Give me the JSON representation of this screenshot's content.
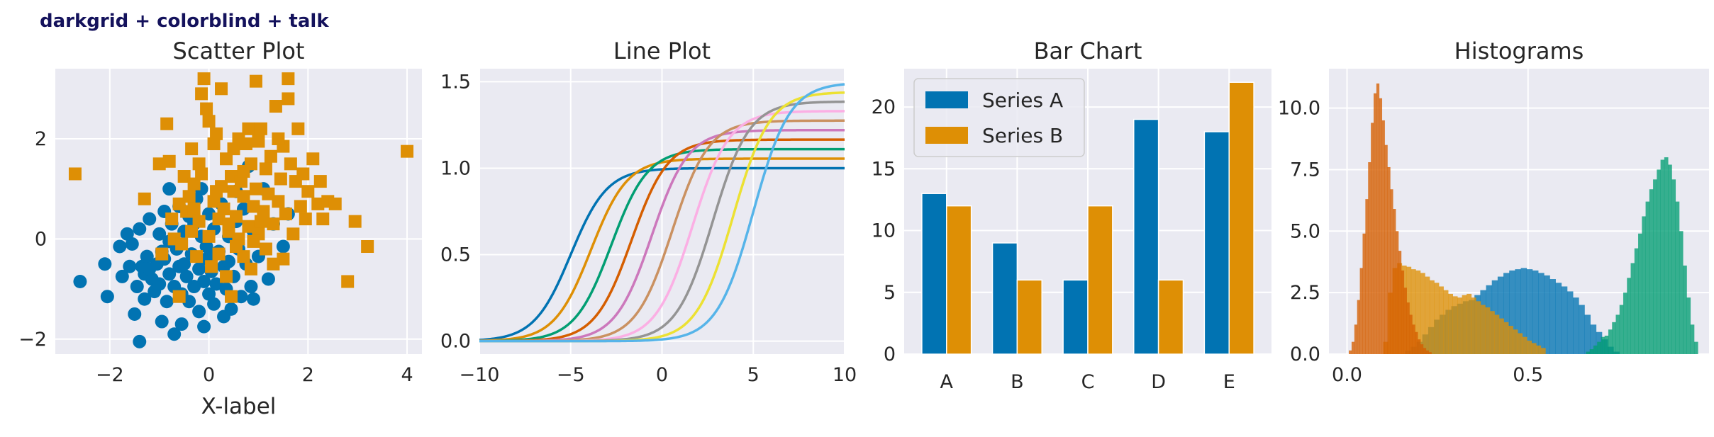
{
  "suptitle": "darkgrid + colorblind + talk",
  "palette": [
    "#0173b2",
    "#de8f05",
    "#029e73",
    "#d55e00",
    "#cc78bc",
    "#ca9161",
    "#fbafe4",
    "#949494",
    "#ece133",
    "#56b4e9"
  ],
  "chart_data": [
    {
      "type": "scatter",
      "title": "Scatter Plot",
      "xlabel": "X-label",
      "ylabel": "",
      "xlim": [
        -3.1,
        4.3
      ],
      "ylim": [
        -2.3,
        3.4
      ],
      "xticks": [
        -2,
        0,
        2,
        4
      ],
      "yticks": [
        -2,
        0,
        2
      ],
      "xtick_labels": [
        "−2",
        "0",
        "2",
        "4"
      ],
      "ytick_labels": [
        "−2",
        "0",
        "2"
      ],
      "series": [
        {
          "marker": "circle",
          "color": "#0173b2",
          "points": [
            [
              -2.6,
              -0.85
            ],
            [
              -2.05,
              -1.15
            ],
            [
              -2.1,
              -0.5
            ],
            [
              -1.8,
              -0.15
            ],
            [
              -1.75,
              -0.75
            ],
            [
              -1.6,
              -0.55
            ],
            [
              -1.55,
              -0.1
            ],
            [
              -1.5,
              -1.5
            ],
            [
              -1.45,
              -0.95
            ],
            [
              -1.4,
              -2.05
            ],
            [
              -1.4,
              0.2
            ],
            [
              -1.35,
              -0.55
            ],
            [
              -1.3,
              -0.7
            ],
            [
              -1.3,
              -1.2
            ],
            [
              -1.25,
              -0.35
            ],
            [
              -1.2,
              0.4
            ],
            [
              -1.15,
              -0.8
            ],
            [
              -1.1,
              -1.05
            ],
            [
              -1.05,
              -0.5
            ],
            [
              -1.0,
              0.1
            ],
            [
              -1.0,
              -0.9
            ],
            [
              -0.95,
              -1.65
            ],
            [
              -0.9,
              -0.4
            ],
            [
              -0.9,
              0.55
            ],
            [
              -0.85,
              -1.25
            ],
            [
              -0.8,
              1.0
            ],
            [
              -0.8,
              -0.7
            ],
            [
              -0.75,
              0.3
            ],
            [
              -0.7,
              -0.95
            ],
            [
              -0.7,
              -1.9
            ],
            [
              -0.65,
              -0.2
            ],
            [
              -0.6,
              0.65
            ],
            [
              -0.6,
              -0.55
            ],
            [
              -0.55,
              -1.1
            ],
            [
              -0.5,
              0.15
            ],
            [
              -0.45,
              -0.75
            ],
            [
              -0.4,
              -1.25
            ],
            [
              -0.4,
              0.45
            ],
            [
              -0.35,
              -0.3
            ],
            [
              -0.3,
              -0.95
            ],
            [
              -0.25,
              0.8
            ],
            [
              -0.2,
              -0.6
            ],
            [
              -0.2,
              -1.45
            ],
            [
              -0.15,
              0.05
            ],
            [
              -0.1,
              -0.85
            ],
            [
              -0.1,
              -1.75
            ],
            [
              -0.05,
              -0.4
            ],
            [
              0.0,
              0.5
            ],
            [
              0.0,
              -1.1
            ],
            [
              0.05,
              -0.65
            ],
            [
              0.1,
              0.2
            ],
            [
              0.1,
              -1.3
            ],
            [
              0.15,
              -0.9
            ],
            [
              0.2,
              -0.25
            ],
            [
              0.25,
              0.7
            ],
            [
              0.3,
              -0.55
            ],
            [
              0.35,
              -1.0
            ],
            [
              0.4,
              0.05
            ],
            [
              0.45,
              -1.4
            ],
            [
              0.5,
              -0.75
            ],
            [
              0.55,
              0.35
            ],
            [
              0.6,
              -0.2
            ],
            [
              0.65,
              -1.15
            ],
            [
              0.7,
              0.6
            ],
            [
              0.75,
              -0.5
            ],
            [
              0.8,
              1.45
            ],
            [
              0.85,
              -0.95
            ],
            [
              0.9,
              0.15
            ],
            [
              1.0,
              -0.35
            ],
            [
              1.1,
              1.0
            ],
            [
              1.2,
              -0.8
            ],
            [
              1.3,
              0.3
            ],
            [
              1.5,
              -0.15
            ],
            [
              1.6,
              0.5
            ],
            [
              -1.2,
              -0.6
            ],
            [
              -0.5,
              -0.5
            ],
            [
              0.1,
              -0.3
            ],
            [
              -0.3,
              0.3
            ],
            [
              -0.95,
              -0.25
            ],
            [
              0.3,
              -1.55
            ],
            [
              -1.65,
              0.1
            ],
            [
              -0.55,
              -1.7
            ],
            [
              0.9,
              -1.2
            ],
            [
              -0.15,
              1.0
            ],
            [
              0.55,
              0.95
            ],
            [
              0.4,
              -0.45
            ],
            [
              -0.8,
              -0.05
            ],
            [
              -0.05,
              -0.15
            ]
          ]
        },
        {
          "marker": "square",
          "color": "#de8f05",
          "points": [
            [
              -2.7,
              1.3
            ],
            [
              -1.3,
              0.8
            ],
            [
              -1.0,
              1.5
            ],
            [
              -0.95,
              -0.3
            ],
            [
              -0.85,
              2.3
            ],
            [
              -0.8,
              1.55
            ],
            [
              -0.75,
              0.4
            ],
            [
              -0.7,
              0.0
            ],
            [
              -0.6,
              0.7
            ],
            [
              -0.55,
              -0.1
            ],
            [
              -0.5,
              1.25
            ],
            [
              -0.45,
              0.55
            ],
            [
              -0.4,
              0.85
            ],
            [
              -0.35,
              0.15
            ],
            [
              -0.3,
              0.6
            ],
            [
              -0.3,
              1.1
            ],
            [
              -0.25,
              -0.35
            ],
            [
              -0.2,
              0.35
            ],
            [
              -0.15,
              2.9
            ],
            [
              -0.15,
              1.3
            ],
            [
              -0.1,
              3.2
            ],
            [
              -0.05,
              2.6
            ],
            [
              0.0,
              0.05
            ],
            [
              0.0,
              2.35
            ],
            [
              0.05,
              -0.55
            ],
            [
              0.1,
              1.9
            ],
            [
              0.1,
              0.75
            ],
            [
              0.15,
              2.1
            ],
            [
              0.2,
              0.4
            ],
            [
              0.2,
              -0.3
            ],
            [
              0.25,
              3.0
            ],
            [
              0.25,
              1.05
            ],
            [
              0.3,
              0.6
            ],
            [
              0.35,
              1.6
            ],
            [
              0.35,
              -0.75
            ],
            [
              0.4,
              0.15
            ],
            [
              0.45,
              1.25
            ],
            [
              0.45,
              -1.15
            ],
            [
              0.5,
              0.95
            ],
            [
              0.5,
              1.8
            ],
            [
              0.55,
              0.45
            ],
            [
              0.6,
              0.0
            ],
            [
              0.6,
              2.0
            ],
            [
              0.65,
              1.15
            ],
            [
              0.7,
              -0.35
            ],
            [
              0.7,
              0.85
            ],
            [
              0.75,
              1.9
            ],
            [
              0.8,
              2.2
            ],
            [
              0.8,
              0.25
            ],
            [
              0.85,
              1.5
            ],
            [
              0.85,
              -0.6
            ],
            [
              0.9,
              0.65
            ],
            [
              0.95,
              3.15
            ],
            [
              0.95,
              1.0
            ],
            [
              1.0,
              1.95
            ],
            [
              1.0,
              0.1
            ],
            [
              1.05,
              2.2
            ],
            [
              1.1,
              0.55
            ],
            [
              1.15,
              1.4
            ],
            [
              1.15,
              -0.2
            ],
            [
              1.2,
              0.9
            ],
            [
              1.25,
              1.65
            ],
            [
              1.3,
              0.3
            ],
            [
              1.35,
              2.65
            ],
            [
              1.4,
              0.75
            ],
            [
              1.45,
              1.2
            ],
            [
              1.5,
              1.85
            ],
            [
              1.5,
              -0.4
            ],
            [
              1.55,
              0.5
            ],
            [
              1.6,
              3.2
            ],
            [
              1.6,
              2.8
            ],
            [
              1.65,
              1.5
            ],
            [
              1.7,
              0.1
            ],
            [
              1.75,
              1.15
            ],
            [
              1.8,
              2.2
            ],
            [
              1.85,
              0.65
            ],
            [
              1.9,
              1.3
            ],
            [
              2.0,
              0.95
            ],
            [
              2.1,
              1.6
            ],
            [
              2.2,
              0.7
            ],
            [
              2.3,
              0.4
            ],
            [
              2.4,
              0.75
            ],
            [
              2.55,
              0.7
            ],
            [
              2.8,
              -0.85
            ],
            [
              2.95,
              0.35
            ],
            [
              3.2,
              -0.15
            ],
            [
              4.0,
              1.75
            ],
            [
              1.3,
              -0.5
            ],
            [
              0.4,
              0.3
            ],
            [
              -0.2,
              1.5
            ],
            [
              1.05,
              0.35
            ],
            [
              0.7,
              1.35
            ],
            [
              -0.6,
              -1.15
            ],
            [
              0.15,
              0.95
            ],
            [
              1.95,
              0.4
            ],
            [
              0.55,
              -0.15
            ],
            [
              -0.35,
              1.8
            ],
            [
              1.4,
              2.0
            ],
            [
              0.9,
              -0.05
            ],
            [
              2.25,
              1.15
            ]
          ]
        }
      ]
    },
    {
      "type": "line",
      "title": "Line Plot",
      "xlabel": "",
      "ylabel": "",
      "xlim": [
        -10,
        10
      ],
      "ylim": [
        -0.075,
        1.575
      ],
      "xticks": [
        -10,
        -5,
        0,
        5,
        10
      ],
      "yticks": [
        0.0,
        0.5,
        1.0,
        1.5
      ],
      "xtick_labels": [
        "−10",
        "−5",
        "0",
        "5",
        "10"
      ],
      "ytick_labels": [
        "0.0",
        "0.5",
        "1.0",
        "1.5"
      ],
      "function": "y = amplitude / (1 + exp(-(x - center)))",
      "series": [
        {
          "center": -5.0,
          "amplitude": 1.0,
          "color": "#0173b2"
        },
        {
          "center": -3.89,
          "amplitude": 1.055,
          "color": "#de8f05"
        },
        {
          "center": -2.78,
          "amplitude": 1.11,
          "color": "#029e73"
        },
        {
          "center": -1.67,
          "amplitude": 1.165,
          "color": "#d55e00"
        },
        {
          "center": -0.56,
          "amplitude": 1.22,
          "color": "#cc78bc"
        },
        {
          "center": 0.56,
          "amplitude": 1.275,
          "color": "#ca9161"
        },
        {
          "center": 1.67,
          "amplitude": 1.33,
          "color": "#fbafe4"
        },
        {
          "center": 2.78,
          "amplitude": 1.385,
          "color": "#949494"
        },
        {
          "center": 3.89,
          "amplitude": 1.44,
          "color": "#ece133"
        },
        {
          "center": 5.0,
          "amplitude": 1.495,
          "color": "#56b4e9"
        }
      ]
    },
    {
      "type": "bar",
      "title": "Bar Chart",
      "xlabel": "",
      "ylabel": "",
      "categories": [
        "A",
        "B",
        "C",
        "D",
        "E"
      ],
      "ylim": [
        0,
        23.1
      ],
      "yticks": [
        0,
        5,
        10,
        15,
        20
      ],
      "ytick_labels": [
        "0",
        "5",
        "10",
        "15",
        "20"
      ],
      "series": [
        {
          "name": "Series A",
          "color": "#0173b2",
          "values": [
            13,
            9,
            6,
            19,
            18
          ]
        },
        {
          "name": "Series B",
          "color": "#de8f05",
          "values": [
            12,
            6,
            12,
            6,
            22
          ]
        }
      ],
      "legend": "upper-left"
    },
    {
      "type": "histogram",
      "title": "Histograms",
      "xlabel": "",
      "ylabel": "",
      "xlim": [
        -0.05,
        1.0
      ],
      "ylim": [
        0,
        11.6
      ],
      "xticks": [
        0.0,
        0.5
      ],
      "yticks": [
        0.0,
        2.5,
        5.0,
        7.5,
        10.0
      ],
      "xtick_labels": [
        "0.0",
        "0.5"
      ],
      "ytick_labels": [
        "0.0",
        "2.5",
        "5.0",
        "7.5",
        "10.0"
      ],
      "series": [
        {
          "color": "#0173b2",
          "bin_start": 0.16,
          "bin_width": 0.016,
          "values": [
            0.15,
            0.3,
            0.5,
            0.8,
            1.1,
            1.4,
            1.6,
            1.8,
            1.95,
            2.05,
            2.15,
            2.2,
            2.4,
            2.6,
            2.8,
            3.0,
            3.15,
            3.3,
            3.4,
            3.45,
            3.5,
            3.45,
            3.4,
            3.3,
            3.2,
            3.05,
            2.9,
            2.75,
            2.55,
            2.3,
            2.0,
            1.6,
            1.2,
            0.9,
            0.6,
            0.3,
            0.1
          ]
        },
        {
          "color": "#de8f05",
          "bin_start": 0.1,
          "bin_width": 0.0128,
          "values": [
            0.5,
            2.5,
            3.5,
            3.7,
            3.6,
            3.55,
            3.45,
            3.4,
            3.3,
            3.15,
            3.0,
            2.9,
            2.75,
            2.6,
            2.45,
            2.35,
            2.3,
            2.4,
            2.45,
            2.3,
            2.15,
            2.0,
            1.9,
            1.75,
            1.6,
            1.45,
            1.3,
            1.15,
            1.0,
            0.85,
            0.7,
            0.55,
            0.45,
            0.35,
            0.25
          ]
        },
        {
          "color": "#029e73",
          "bin_start": 0.66,
          "bin_width": 0.0103,
          "values": [
            0.1,
            0.2,
            0.35,
            0.5,
            0.7,
            0.75,
            1.0,
            1.3,
            1.6,
            2.0,
            2.5,
            3.1,
            3.7,
            4.3,
            4.9,
            5.6,
            6.2,
            6.7,
            7.1,
            7.5,
            7.9,
            8.0,
            7.7,
            7.1,
            6.2,
            5.0,
            3.6,
            2.3,
            1.2,
            0.5
          ]
        },
        {
          "color": "#d55e00",
          "bin_start": 0.005,
          "bin_width": 0.0076,
          "values": [
            0.15,
            0.5,
            1.2,
            2.2,
            3.5,
            4.9,
            6.3,
            7.8,
            9.4,
            10.6,
            11.0,
            10.4,
            9.5,
            8.5,
            7.6,
            6.7,
            5.9,
            5.0,
            4.2,
            3.4,
            2.7,
            2.1,
            1.6,
            1.2,
            0.9,
            0.6,
            0.4,
            0.25,
            0.15,
            0.08
          ]
        }
      ]
    }
  ]
}
